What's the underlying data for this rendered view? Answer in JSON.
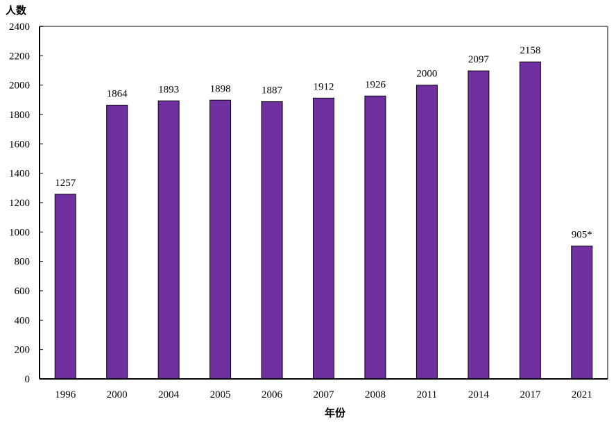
{
  "chart_data": {
    "type": "bar",
    "title": "",
    "xlabel": "年份",
    "ylabel": "人数",
    "ylim": [
      0,
      2400
    ],
    "yticks": [
      0,
      200,
      400,
      600,
      800,
      1000,
      1200,
      1400,
      1600,
      1800,
      2000,
      2200,
      2400
    ],
    "categories": [
      "1996",
      "2000",
      "2004",
      "2005",
      "2006",
      "2007",
      "2008",
      "2011",
      "2014",
      "2017",
      "2021"
    ],
    "values": [
      1257,
      1864,
      1893,
      1898,
      1887,
      1912,
      1926,
      2000,
      2097,
      2158,
      905
    ],
    "data_labels": [
      "1257",
      "1864",
      "1893",
      "1898",
      "1887",
      "1912",
      "1926",
      "2000",
      "2097",
      "2158",
      "905*"
    ],
    "bar_color": "#7030A0",
    "grid": false,
    "legend": null
  }
}
